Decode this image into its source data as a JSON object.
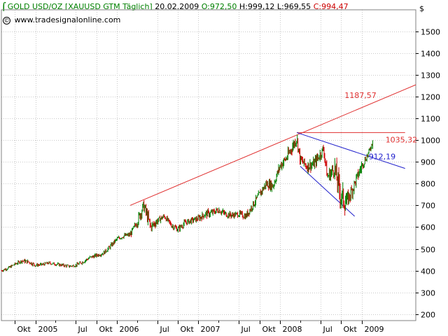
{
  "header": {
    "logo_icon": "tradesignal-logo-icon",
    "title": "GOLD USD/OZ [XAUUSD GTM  Täglich]",
    "date": "20.02.2009",
    "open": "O:972,50",
    "high": "H:999,12",
    "low": "L:969,55",
    "close": "C:994,47",
    "colors": {
      "title": "#008000",
      "open": "#008000",
      "neutral": "#000000",
      "close": "#cc0000"
    }
  },
  "credit": {
    "icon": "copyright-icon",
    "symbol": "©",
    "text": "www.tradesignalonline.com"
  },
  "chart_data": {
    "type": "line",
    "subtype": "ohlc-bars",
    "currency_label": "$",
    "y_axis_position": "right",
    "ylim": [
      170,
      1600
    ],
    "xlim": [
      "2004-08-01",
      "2009-09-01"
    ],
    "yticks": [
      200,
      300,
      400,
      500,
      600,
      700,
      800,
      900,
      1000,
      1100,
      1200,
      1300,
      1400,
      1500
    ],
    "ytick_labels": [
      "200",
      "300",
      "400",
      "500",
      "600",
      "700",
      "800",
      "900",
      "1000",
      "1100",
      "1200",
      "1300",
      "1400",
      "1500"
    ],
    "xticks": [
      {
        "date": "2004-10-01",
        "label": "Okt"
      },
      {
        "date": "2005-01-01",
        "label": "2005"
      },
      {
        "date": "2005-07-01",
        "label": "Jul"
      },
      {
        "date": "2005-10-01",
        "label": "Okt"
      },
      {
        "date": "2006-01-01",
        "label": "2006"
      },
      {
        "date": "2006-07-01",
        "label": "Jul"
      },
      {
        "date": "2006-10-01",
        "label": "Okt"
      },
      {
        "date": "2007-01-01",
        "label": "2007"
      },
      {
        "date": "2007-07-01",
        "label": "Jul"
      },
      {
        "date": "2007-10-01",
        "label": "Okt"
      },
      {
        "date": "2008-01-01",
        "label": "2008"
      },
      {
        "date": "2008-07-01",
        "label": "Jul"
      },
      {
        "date": "2008-10-01",
        "label": "Okt"
      },
      {
        "date": "2009-01-01",
        "label": "2009"
      }
    ],
    "minor_tick_dates": [
      "2005-04-01",
      "2006-04-01",
      "2007-04-01",
      "2008-04-01"
    ],
    "grid": true,
    "colors": {
      "up": "#008000",
      "down": "#cc0000",
      "trend_red": "#e03030",
      "trend_blue": "#2020cc"
    },
    "series": [
      {
        "kind": "price",
        "x": [
          "2004-08-01",
          "2004-09-01",
          "2004-10-01",
          "2004-11-01",
          "2004-12-01",
          "2005-01-01",
          "2005-02-01",
          "2005-03-01",
          "2005-04-01",
          "2005-05-01",
          "2005-06-01",
          "2005-07-01",
          "2005-08-01",
          "2005-09-01",
          "2005-10-01",
          "2005-11-01",
          "2005-12-01",
          "2006-01-01",
          "2006-02-01",
          "2006-03-01",
          "2006-04-01",
          "2006-05-01",
          "2006-06-01",
          "2006-07-01",
          "2006-08-01",
          "2006-09-01",
          "2006-10-01",
          "2006-11-01",
          "2006-12-01",
          "2007-01-01",
          "2007-02-01",
          "2007-03-01",
          "2007-04-01",
          "2007-05-01",
          "2007-06-01",
          "2007-07-01",
          "2007-08-01",
          "2007-09-01",
          "2007-10-01",
          "2007-11-01",
          "2007-12-01",
          "2008-01-01",
          "2008-02-01",
          "2008-03-17",
          "2008-04-01",
          "2008-05-01",
          "2008-06-01",
          "2008-07-15",
          "2008-08-01",
          "2008-09-01",
          "2008-10-01",
          "2008-10-24",
          "2008-11-15",
          "2008-12-01",
          "2009-01-01",
          "2009-02-01",
          "2009-02-20"
        ],
        "y": [
          400,
          412,
          430,
          445,
          440,
          425,
          428,
          435,
          430,
          425,
          420,
          425,
          440,
          460,
          470,
          480,
          510,
          545,
          560,
          565,
          625,
          700,
          600,
          630,
          650,
          610,
          590,
          620,
          630,
          640,
          660,
          665,
          680,
          660,
          655,
          660,
          650,
          700,
          750,
          800,
          790,
          880,
          920,
          1010,
          910,
          880,
          890,
          960,
          830,
          870,
          740,
          715,
          760,
          800,
          880,
          940,
          994
        ],
        "high": [
          410,
          420,
          440,
          455,
          455,
          435,
          438,
          445,
          440,
          435,
          430,
          435,
          455,
          475,
          485,
          495,
          530,
          560,
          575,
          585,
          655,
          730,
          635,
          650,
          665,
          630,
          610,
          640,
          650,
          665,
          690,
          695,
          700,
          690,
          675,
          680,
          685,
          740,
          790,
          840,
          845,
          920,
          970,
          1035,
          960,
          925,
          935,
          995,
          870,
          920,
          935,
          780,
          800,
          860,
          920,
          960,
          1000
        ],
        "low": [
          390,
          402,
          420,
          432,
          425,
          415,
          418,
          425,
          420,
          415,
          410,
          415,
          430,
          450,
          460,
          470,
          500,
          530,
          545,
          555,
          600,
          640,
          560,
          610,
          630,
          590,
          570,
          600,
          615,
          625,
          640,
          645,
          660,
          640,
          640,
          645,
          635,
          690,
          735,
          785,
          780,
          860,
          900,
          950,
          890,
          855,
          865,
          920,
          790,
          820,
          710,
          681,
          720,
          770,
          860,
          920,
          960
        ]
      }
    ],
    "trendlines": [
      {
        "color": "red",
        "points": [
          {
            "x": "2006-03-01",
            "y": 700
          },
          {
            "x": "2009-09-01",
            "y": 1255
          }
        ],
        "label": "1187,57",
        "label_value": 1187.57
      },
      {
        "color": "red",
        "points": [
          {
            "x": "2008-03-17",
            "y": 1035.32
          },
          {
            "x": "2009-07-15",
            "y": 1035.32
          }
        ],
        "label": "1035,32",
        "label_value": 1035.32
      },
      {
        "color": "blue",
        "points": [
          {
            "x": "2008-03-17",
            "y": 1035
          },
          {
            "x": "2009-07-15",
            "y": 870
          }
        ],
        "label": "912,19",
        "label_value": 912.19
      },
      {
        "color": "blue",
        "points": [
          {
            "x": "2008-04-01",
            "y": 880
          },
          {
            "x": "2008-12-01",
            "y": 650
          }
        ],
        "label": "",
        "label_value": null
      }
    ]
  }
}
